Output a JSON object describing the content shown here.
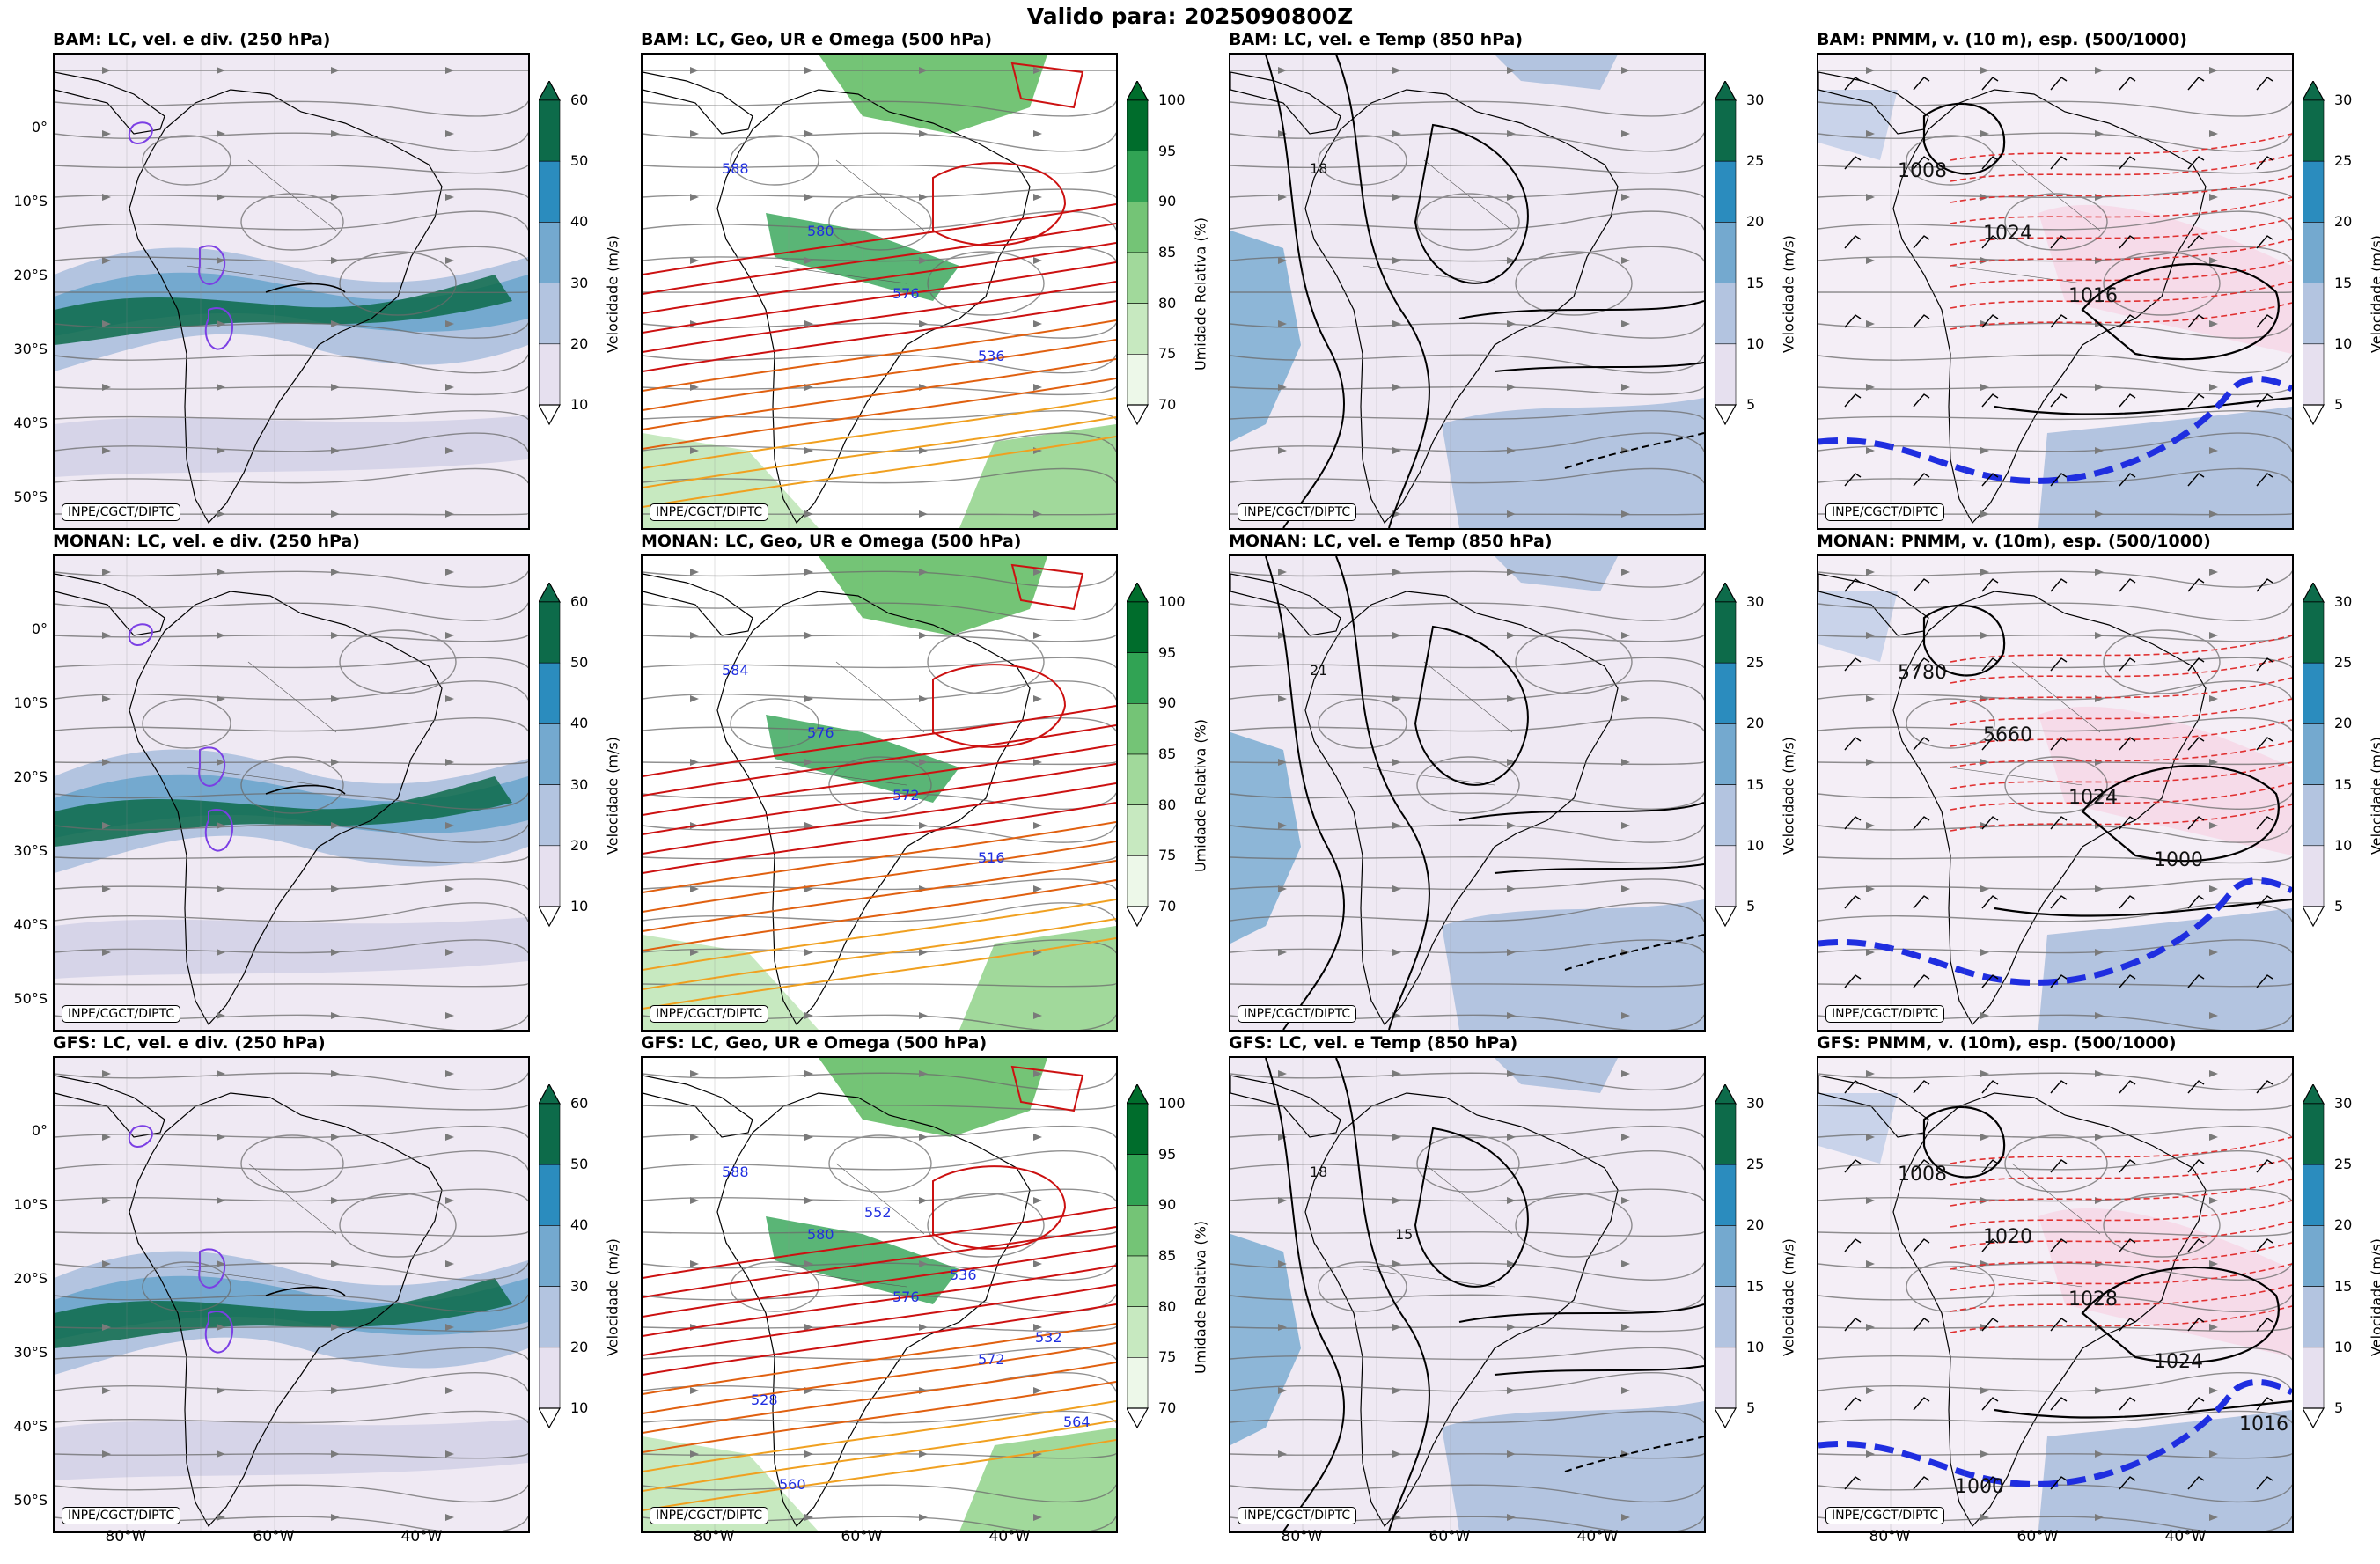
{
  "title": "Valido para: 2025090800Z",
  "credit": "INPE/CGCT/DIPTC",
  "lat_ticks": [
    "0°",
    "10°S",
    "20°S",
    "30°S",
    "40°S",
    "50°S"
  ],
  "lon_ticks": [
    "80°W",
    "60°W",
    "40°W"
  ],
  "colorbars": {
    "wind250": {
      "label": "Velocidade (m/s)",
      "ticks": [
        "60",
        "50",
        "40",
        "30",
        "20",
        "10"
      ],
      "colors": [
        "#0d6b4a",
        "#2b8cbe",
        "#74a9cf",
        "#b3c4e0",
        "#e6e0ef"
      ]
    },
    "rh500": {
      "label": "Umidade Relativa (%)",
      "ticks": [
        "100",
        "95",
        "90",
        "85",
        "80",
        "75",
        "70"
      ],
      "colors": [
        "#006d2c",
        "#31a354",
        "#74c476",
        "#a1d99b",
        "#c7e9c0",
        "#edf8e9"
      ]
    },
    "wind850": {
      "label": "Velocidade (m/s)",
      "ticks": [
        "30",
        "25",
        "20",
        "15",
        "10",
        "5"
      ],
      "colors": [
        "#0d6b4a",
        "#2b8cbe",
        "#74a9cf",
        "#b3c4e0",
        "#e6e0ef"
      ]
    }
  },
  "rows": [
    {
      "model": "BAM",
      "titles": [
        "BAM: LC, vel. e div. (250 hPa)",
        "BAM: LC, Geo, UR e Omega (500 hPa)",
        "BAM: LC, vel. e Temp (850 hPa)",
        "BAM: PNMM, v. (10 m), esp. (500/1000)"
      ],
      "labels500": [
        "588",
        "580",
        "576",
        "536"
      ],
      "labels850": [
        "18"
      ],
      "labelsP": [
        "1008",
        "1024",
        "1016"
      ]
    },
    {
      "model": "MONAN",
      "titles": [
        "MONAN: LC, vel. e div. (250 hPa)",
        "MONAN: LC, Geo, UR e Omega (500 hPa)",
        "MONAN: LC, vel. e Temp (850 hPa)",
        "MONAN: PNMM, v. (10m), esp. (500/1000)"
      ],
      "labels500": [
        "584",
        "576",
        "572",
        "516"
      ],
      "labels850": [
        "21"
      ],
      "labelsP": [
        "5780",
        "5660",
        "1024",
        "1000"
      ]
    },
    {
      "model": "GFS",
      "titles": [
        "GFS: LC, vel. e div. (250 hPa)",
        "GFS: LC, Geo, UR e Omega (500 hPa)",
        "GFS: LC, vel. e Temp (850 hPa)",
        "GFS: PNMM, v. (10m), esp. (500/1000)"
      ],
      "labels500": [
        "588",
        "580",
        "576",
        "572",
        "564",
        "560",
        "552",
        "536",
        "532",
        "528"
      ],
      "labels850": [
        "18",
        "15"
      ],
      "labelsP": [
        "1008",
        "1020",
        "1028",
        "1024",
        "1016",
        "1000"
      ]
    }
  ]
}
